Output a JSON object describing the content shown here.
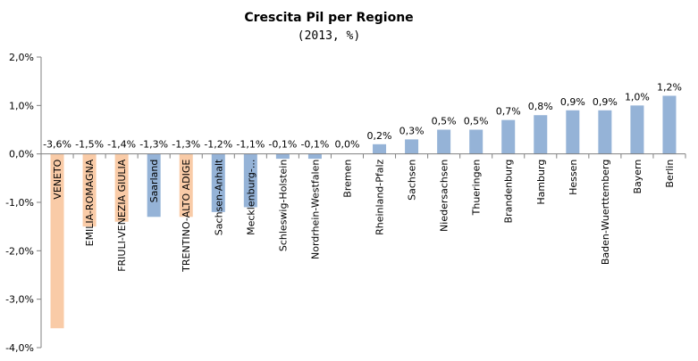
{
  "chart_data": {
    "type": "bar",
    "title": "Crescita Pil per Regione",
    "subtitle": "(2013, %)",
    "xlabel": "",
    "ylabel": "",
    "ylim": [
      -4.0,
      2.0
    ],
    "yticks": [
      "2,0%",
      "1,0%",
      "0,0%",
      "-1,0%",
      "-2,0%",
      "-3,0%",
      "-4,0%"
    ],
    "ytick_values": [
      2.0,
      1.0,
      0.0,
      -1.0,
      -2.0,
      -3.0,
      -4.0
    ],
    "grid": false,
    "legend": "none",
    "colors": {
      "italy": "#F9CBA7",
      "germany": "#95B3D7",
      "axis": "#808080"
    },
    "categories": [
      "VENETO",
      "EMILIA-ROMAGNA",
      "FRIULI-VENEZIA GIULIA",
      "Saarland",
      "TRENTINO-ALTO ADIGE",
      "Sachsen-Anhalt",
      "Mecklenburg-...",
      "Schleswig-Holstein",
      "Nordrhein-Westfalen",
      "Bremen",
      "Rheinland-Pfalz",
      "Sachsen",
      "Niedersachsen",
      "Thueringen",
      "Brandenburg",
      "Hamburg",
      "Hessen",
      "Baden-Wuerttemberg",
      "Bayern",
      "Berlin"
    ],
    "values": [
      -3.6,
      -1.5,
      -1.4,
      -1.3,
      -1.3,
      -1.2,
      -1.1,
      -0.1,
      -0.1,
      0.0,
      0.2,
      0.3,
      0.5,
      0.5,
      0.7,
      0.8,
      0.9,
      0.9,
      1.0,
      1.2
    ],
    "data_labels": [
      "-3,6%",
      "-1,5%",
      "-1,4%",
      "-1,3%",
      "-1,3%",
      "-1,2%",
      "-1,1%",
      "-0,1%",
      "-0,1%",
      "0,0%",
      "0,2%",
      "0,3%",
      "0,5%",
      "0,5%",
      "0,7%",
      "0,8%",
      "0,9%",
      "0,9%",
      "1,0%",
      "1,2%"
    ],
    "bar_group": [
      "italy",
      "italy",
      "italy",
      "germany",
      "italy",
      "germany",
      "germany",
      "germany",
      "germany",
      "germany",
      "germany",
      "germany",
      "germany",
      "germany",
      "germany",
      "germany",
      "germany",
      "germany",
      "germany",
      "germany"
    ]
  }
}
